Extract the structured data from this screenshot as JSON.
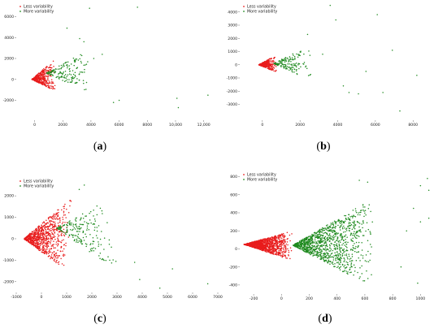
{
  "legend_labels": [
    "Less variability",
    "More variability"
  ],
  "colors": {
    "less": "#e81c1c",
    "more": "#1f8a1f"
  },
  "chart_data": [
    {
      "id": "a",
      "type": "scatter",
      "caption_letter": "a",
      "xlim": [
        -1300,
        13000
      ],
      "ylim": [
        -3900,
        7200
      ],
      "xticks": [
        0,
        2000,
        4000,
        6000,
        8000,
        10000,
        12000
      ],
      "xtick_labels": [
        "0",
        "2000",
        "4000",
        "6000",
        "8000",
        "10,000",
        "12,000"
      ],
      "yticks": [
        -2000,
        0,
        2000,
        4000,
        6000
      ],
      "ytick_labels": [
        "-2000",
        "0",
        "2000",
        "4000",
        "6000"
      ],
      "grid": false,
      "legend": "top-left",
      "series": [
        {
          "key": "less",
          "cluster": {
            "origin": [
              -200,
              0
            ],
            "ends": [
              [
                1400,
                1900
              ],
              [
                1600,
                -1200
              ]
            ],
            "n": 380
          }
        },
        {
          "key": "more",
          "cluster": {
            "origin": [
              800,
              600
            ],
            "ends": [
              [
                3800,
                2800
              ],
              [
                4300,
                -1500
              ]
            ],
            "n": 160
          },
          "outliers": [
            [
              3900,
              6800
            ],
            [
              7300,
              6900
            ],
            [
              12300,
              -1500
            ],
            [
              10100,
              -1800
            ],
            [
              10200,
              -2700
            ],
            [
              5600,
              -2200
            ],
            [
              6000,
              -2000
            ],
            [
              4200,
              2000
            ],
            [
              4800,
              2400
            ],
            [
              2300,
              4900
            ],
            [
              3200,
              3900
            ],
            [
              3500,
              3600
            ]
          ]
        }
      ]
    },
    {
      "id": "b",
      "type": "scatter",
      "caption_letter": "b",
      "xlim": [
        -1200,
        9500
      ],
      "ylim": [
        -4200,
        4600
      ],
      "xticks": [
        0,
        2000,
        4000,
        6000,
        8000
      ],
      "xtick_labels": [
        "0",
        "2000",
        "4000",
        "6000",
        "8000"
      ],
      "yticks": [
        -3000,
        -2000,
        -1000,
        0,
        1000,
        2000,
        3000,
        4000
      ],
      "ytick_labels": [
        "-3000",
        "-2000",
        "-1000",
        "0",
        "1000",
        "2000",
        "3000",
        "4000"
      ],
      "grid": false,
      "legend": "top-left",
      "series": [
        {
          "key": "less",
          "cluster": {
            "origin": [
              -200,
              0
            ],
            "ends": [
              [
                700,
                700
              ],
              [
                800,
                -600
              ]
            ],
            "n": 320
          }
        },
        {
          "key": "more",
          "cluster": {
            "origin": [
              600,
              100
            ],
            "ends": [
              [
                2500,
                1500
              ],
              [
                2700,
                -1300
              ]
            ],
            "n": 150
          },
          "outliers": [
            [
              3600,
              4500
            ],
            [
              6100,
              3800
            ],
            [
              3900,
              3400
            ],
            [
              8200,
              -800
            ],
            [
              6900,
              1100
            ],
            [
              6400,
              -2100
            ],
            [
              7300,
              -3500
            ],
            [
              4300,
              -1600
            ],
            [
              4600,
              -2100
            ],
            [
              5100,
              -2200
            ],
            [
              3200,
              800
            ],
            [
              2400,
              2300
            ],
            [
              5500,
              -500
            ]
          ]
        }
      ]
    },
    {
      "id": "c",
      "type": "scatter",
      "caption_letter": "c",
      "xlim": [
        -1000,
        7000
      ],
      "ylim": [
        -2500,
        2800
      ],
      "xticks": [
        -1000,
        0,
        1000,
        2000,
        3000,
        4000,
        5000,
        6000,
        7000
      ],
      "xtick_labels": [
        "-1000",
        "0",
        "1000",
        "2000",
        "3000",
        "4000",
        "5000",
        "6000",
        "7000"
      ],
      "yticks": [
        -2000,
        -1000,
        0,
        1000,
        2000
      ],
      "ytick_labels": [
        "-2000",
        "-1000",
        "0",
        "1000",
        "2000"
      ],
      "grid": false,
      "legend": "top-left",
      "series": [
        {
          "key": "less",
          "cluster": {
            "origin": [
              -700,
              0
            ],
            "ends": [
              [
                1300,
                2000
              ],
              [
                1000,
                -1500
              ]
            ],
            "n": 800
          }
        },
        {
          "key": "more",
          "cluster": {
            "origin": [
              600,
              500
            ],
            "ends": [
              [
                2700,
                1900
              ],
              [
                3100,
                -1600
              ]
            ],
            "n": 200
          },
          "outliers": [
            [
              6600,
              -2100
            ],
            [
              5200,
              -1400
            ],
            [
              4700,
              -2300
            ],
            [
              3900,
              -1900
            ],
            [
              3700,
              -1100
            ],
            [
              1700,
              2500
            ],
            [
              1500,
              2300
            ],
            [
              2400,
              1300
            ]
          ]
        }
      ]
    },
    {
      "id": "d",
      "type": "scatter",
      "caption_letter": "d",
      "xlim": [
        -300,
        1150
      ],
      "ylim": [
        -500,
        850
      ],
      "xticks": [
        -200,
        0,
        200,
        400,
        600,
        800,
        1000
      ],
      "xtick_labels": [
        "-200",
        "0",
        "200",
        "400",
        "600",
        "800",
        "1000"
      ],
      "yticks": [
        -400,
        -200,
        0,
        200,
        400,
        600,
        800
      ],
      "ytick_labels": [
        "-400",
        "-200",
        "0",
        "200",
        "400",
        "600",
        "800"
      ],
      "grid": false,
      "legend": "top-left",
      "series": [
        {
          "key": "less",
          "cluster": {
            "origin": [
              -270,
              50
            ],
            "ends": [
              [
                80,
                200
              ],
              [
                80,
                -130
              ]
            ],
            "n": 1100
          }
        },
        {
          "key": "more",
          "cluster": {
            "origin": [
              80,
              40
            ],
            "ends": [
              [
                700,
                600
              ],
              [
                650,
                -420
              ]
            ],
            "n": 1100
          },
          "outliers": [
            [
              1050,
              780
            ],
            [
              1060,
              650
            ],
            [
              1000,
              700
            ],
            [
              950,
              450
            ],
            [
              900,
              200
            ],
            [
              1000,
              300
            ],
            [
              620,
              740
            ],
            [
              560,
              760
            ],
            [
              1060,
              340
            ],
            [
              980,
              -380
            ],
            [
              860,
              -200
            ]
          ]
        }
      ]
    }
  ]
}
